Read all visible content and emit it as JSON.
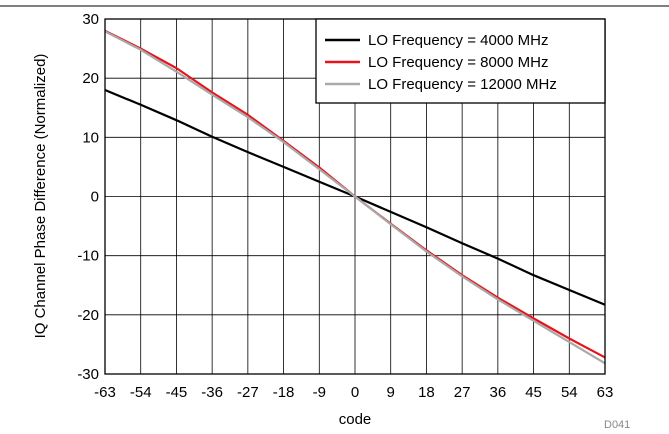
{
  "figure_code": "D041",
  "chart_data": {
    "type": "line",
    "title": "",
    "xlabel": "code",
    "ylabel": "IQ Channel Phase Difference (Normalized)",
    "xlim": [
      -63,
      63
    ],
    "ylim": [
      -30,
      30
    ],
    "xticks": [
      -63,
      -54,
      -45,
      -36,
      -27,
      -18,
      -9,
      0,
      9,
      18,
      27,
      36,
      45,
      54,
      63
    ],
    "yticks": [
      -30,
      -20,
      -10,
      0,
      10,
      20,
      30
    ],
    "grid": true,
    "legend_position": "top-right",
    "series": [
      {
        "name": "LO Frequency = 4000 MHz",
        "color": "#000000",
        "x": [
          -63,
          -54,
          -45,
          -36,
          -27,
          -18,
          -9,
          0,
          9,
          18,
          27,
          36,
          45,
          54,
          63
        ],
        "y": [
          18,
          15.5,
          12.9,
          10.1,
          7.5,
          5.0,
          2.5,
          0,
          -2.6,
          -5.2,
          -7.9,
          -10.5,
          -13.3,
          -15.8,
          -18.3
        ]
      },
      {
        "name": "LO Frequency = 8000 MHz",
        "color": "#e8141c",
        "x": [
          -63,
          -54,
          -45,
          -36,
          -27,
          -18,
          -9,
          0,
          9,
          18,
          27,
          36,
          45,
          54,
          63
        ],
        "y": [
          28,
          25,
          21.7,
          17.6,
          13.8,
          9.4,
          4.9,
          0,
          -4.6,
          -9.1,
          -13.3,
          -17.1,
          -20.6,
          -24,
          -27.2
        ]
      },
      {
        "name": "LO Frequency = 12000 MHz",
        "color": "#a9a9a9",
        "x": [
          -63,
          -54,
          -45,
          -36,
          -27,
          -18,
          -9,
          0,
          9,
          18,
          27,
          36,
          45,
          54,
          63
        ],
        "y": [
          27.9,
          24.8,
          21.1,
          17.2,
          13.4,
          9.2,
          4.6,
          0,
          -4.7,
          -9.3,
          -13.5,
          -17.4,
          -21.0,
          -24.6,
          -28.2
        ]
      }
    ]
  }
}
